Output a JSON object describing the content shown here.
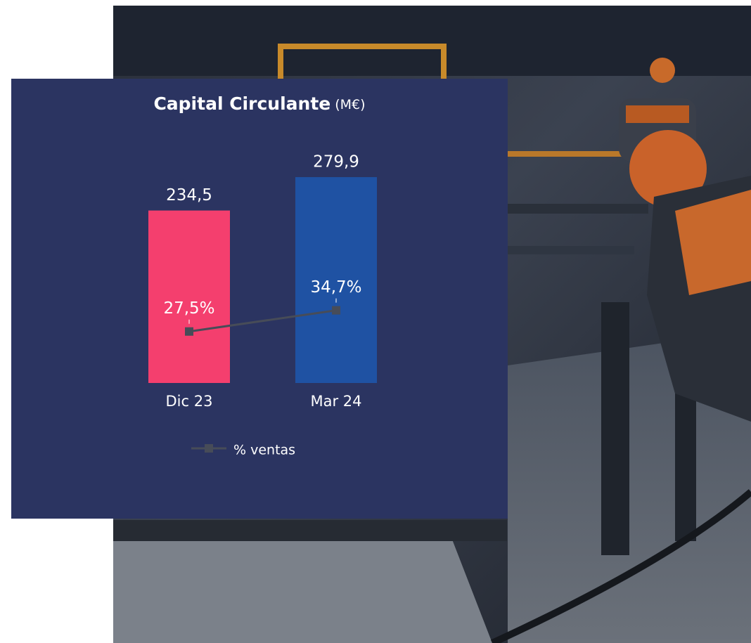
{
  "chart_data": {
    "type": "bar",
    "title": "Capital Circulante",
    "unit": "(M€)",
    "categories": [
      "Dic 23",
      "Mar 24"
    ],
    "values": [
      234.5,
      279.9
    ],
    "value_labels": [
      "234,5",
      "279,9"
    ],
    "colors": [
      "#f43f6e",
      "#1f52a3"
    ],
    "ylim": [
      0,
      300
    ],
    "line": {
      "name": "% ventas",
      "color": "#474c58",
      "axis": "y2",
      "values": [
        27.5,
        34.7
      ],
      "value_labels": [
        "27,5%",
        "34,7%"
      ]
    },
    "y2lim": [
      10,
      85
    ]
  }
}
